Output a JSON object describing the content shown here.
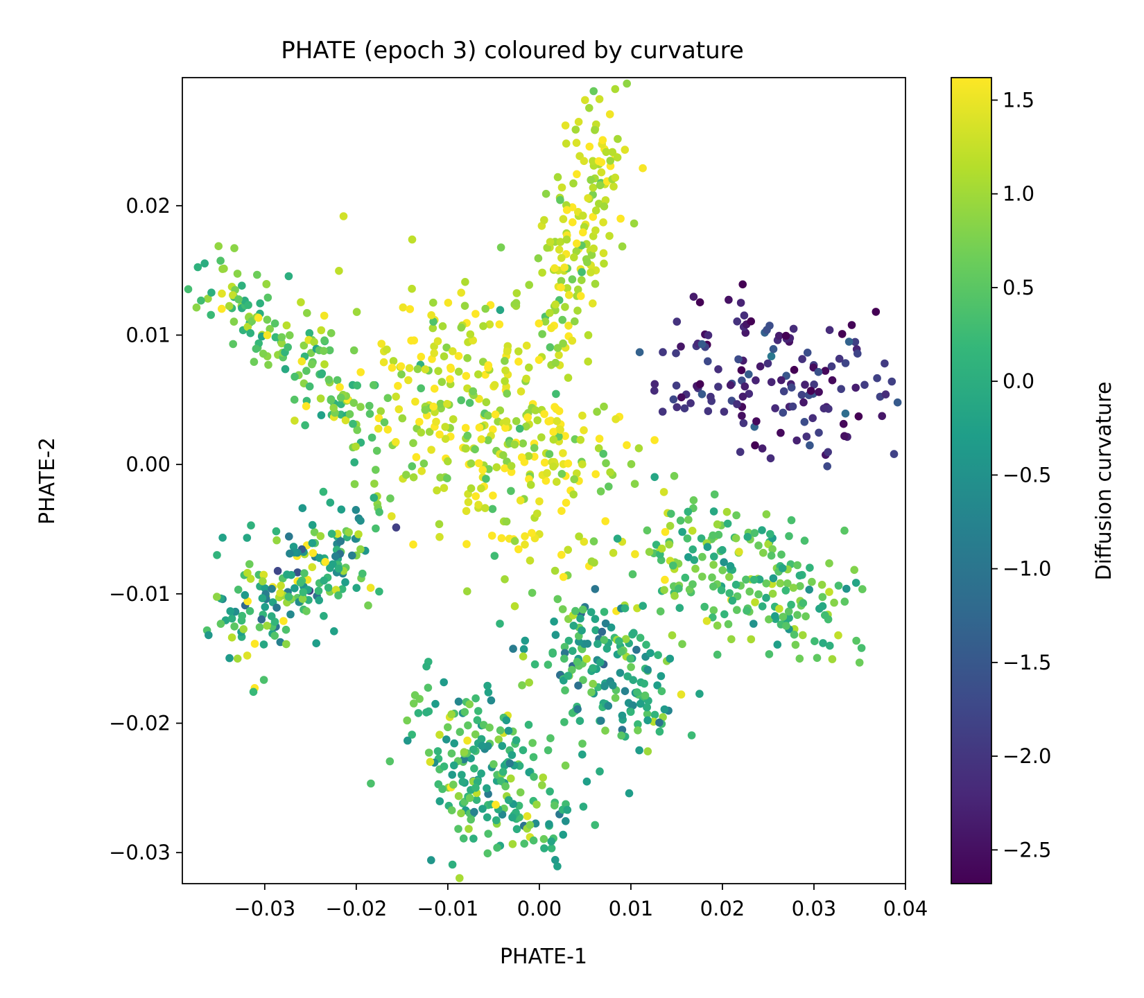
{
  "chart_data": {
    "type": "scatter",
    "title": "PHATE (epoch 3) coloured by curvature",
    "xlabel": "PHATE-1",
    "ylabel": "PHATE-2",
    "xlim": [
      -0.039,
      0.04
    ],
    "ylim": [
      -0.0324,
      0.0299
    ],
    "xticks": [
      -0.03,
      -0.02,
      -0.01,
      0.0,
      0.01,
      0.02,
      0.03,
      0.04
    ],
    "xtick_labels": [
      "−0.03",
      "−0.02",
      "−0.01",
      "0.00",
      "0.01",
      "0.02",
      "0.03",
      "0.04"
    ],
    "yticks": [
      -0.03,
      -0.02,
      -0.01,
      0.0,
      0.01,
      0.02
    ],
    "ytick_labels": [
      "−0.03",
      "−0.02",
      "−0.01",
      "0.00",
      "0.01",
      "0.02"
    ],
    "grid": false,
    "colorbar": {
      "label": "Diffusion curvature",
      "colormap": "viridis",
      "range": [
        -2.68,
        1.62
      ],
      "ticks": [
        1.5,
        1.0,
        0.5,
        0.0,
        -0.5,
        -1.0,
        -1.5,
        -2.0,
        -2.5
      ],
      "tick_labels": [
        "1.5",
        "1.0",
        "0.5",
        "0.0",
        "−0.5",
        "−1.0",
        "−1.5",
        "−2.0",
        "−2.5"
      ],
      "stops": [
        "#440154",
        "#482878",
        "#3e4989",
        "#31688e",
        "#26828e",
        "#1f9e89",
        "#35b779",
        "#6ece58",
        "#b5de2b",
        "#fde725"
      ]
    },
    "clusters": [
      {
        "name": "upper-left arm",
        "x0": -0.0355,
        "y0": 0.0145,
        "x1": -0.019,
        "y1": 0.003,
        "spread": 0.0018,
        "n": 150,
        "c_mean": 0.6,
        "c_sd": 0.5
      },
      {
        "name": "top arm",
        "x0": 0.0015,
        "y0": 0.0095,
        "x1": 0.0075,
        "y1": 0.0265,
        "spread": 0.002,
        "n": 160,
        "c_mean": 1.2,
        "c_sd": 0.4
      },
      {
        "name": "right cluster",
        "x0": 0.0155,
        "y0": 0.0075,
        "x1": 0.0365,
        "y1": 0.006,
        "spread": 0.003,
        "n": 150,
        "c_mean": -2.1,
        "c_sd": 0.45
      },
      {
        "name": "center",
        "x0": -0.015,
        "y0": 0.008,
        "x1": 0.005,
        "y1": -0.003,
        "spread": 0.0045,
        "n": 360,
        "c_mean": 1.25,
        "c_sd": 0.45
      },
      {
        "name": "lower-left arm",
        "x0": -0.0335,
        "y0": -0.0135,
        "x1": -0.018,
        "y1": -0.004,
        "spread": 0.0023,
        "n": 190,
        "c_mean": 0.15,
        "c_sd": 0.75
      },
      {
        "name": "bottom cluster",
        "x0": -0.011,
        "y0": -0.021,
        "x1": 0.001,
        "y1": -0.0275,
        "spread": 0.003,
        "n": 210,
        "c_mean": 0.2,
        "c_sd": 0.55
      },
      {
        "name": "bottom-middle cluster",
        "x0": 0.002,
        "y0": -0.0145,
        "x1": 0.013,
        "y1": -0.018,
        "spread": 0.0025,
        "n": 170,
        "c_mean": 0.0,
        "c_sd": 0.55
      },
      {
        "name": "lower-right arm",
        "x0": 0.014,
        "y0": -0.007,
        "x1": 0.0315,
        "y1": -0.0105,
        "spread": 0.0026,
        "n": 210,
        "c_mean": 0.4,
        "c_sd": 0.45
      }
    ]
  }
}
